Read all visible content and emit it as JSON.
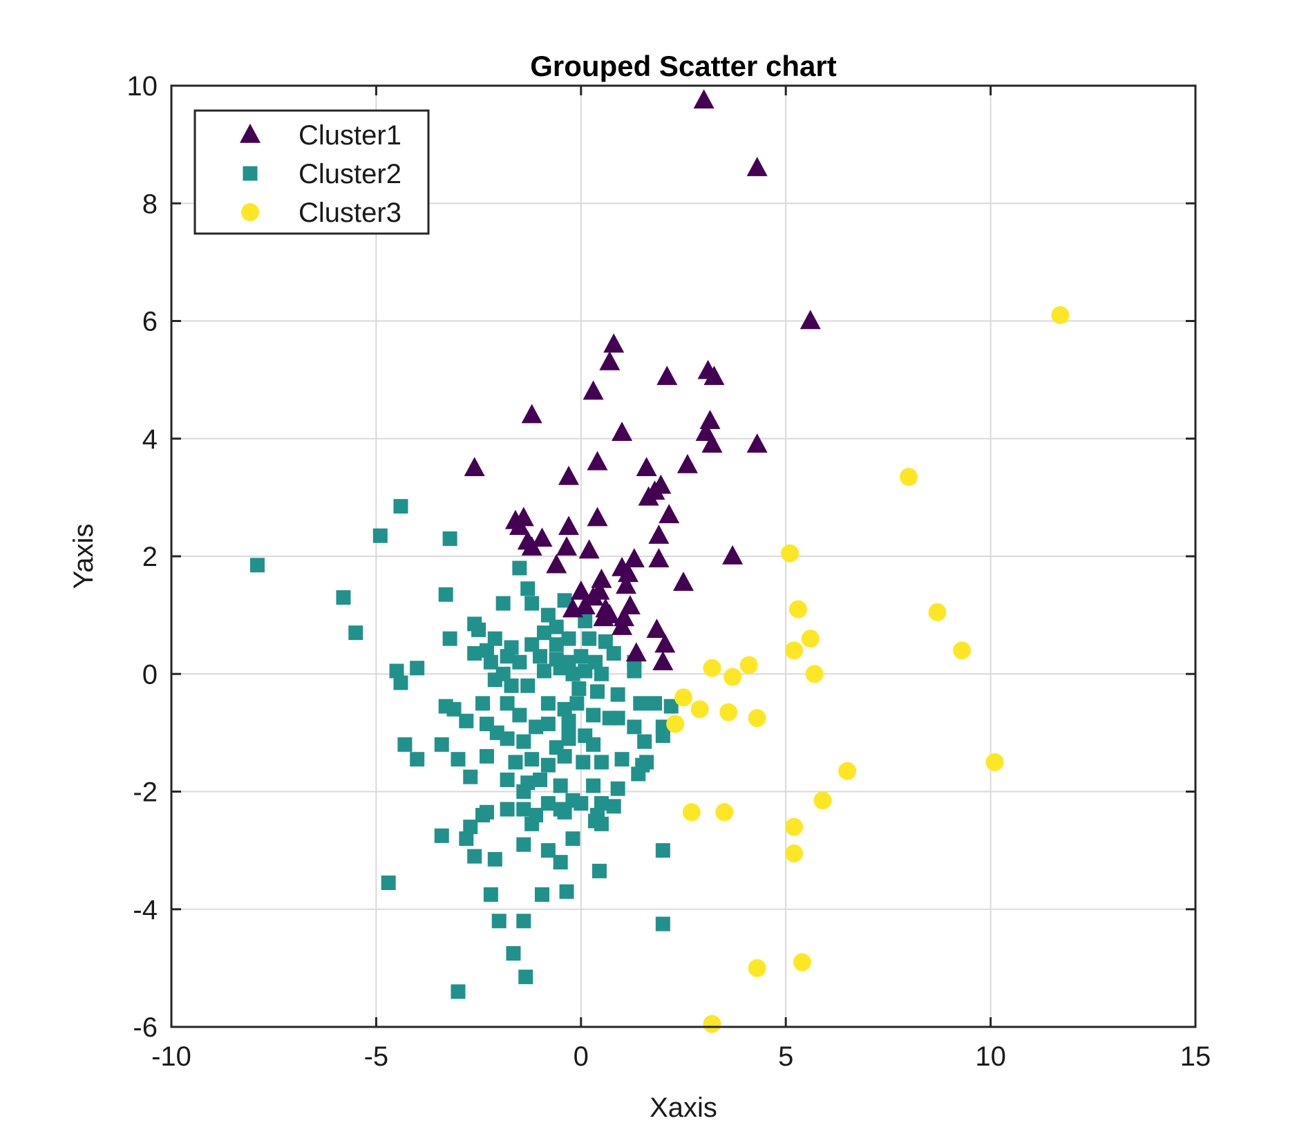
{
  "chart_data": {
    "type": "scatter",
    "title": "Grouped Scatter chart",
    "xlabel": "Xaxis",
    "ylabel": "Yaxis",
    "xlim": [
      -10,
      15
    ],
    "ylim": [
      -6,
      10
    ],
    "xticks": [
      -10,
      -5,
      0,
      5,
      10,
      15
    ],
    "yticks": [
      -6,
      -4,
      -2,
      0,
      2,
      4,
      6,
      8,
      10
    ],
    "xtick_labels": [
      "-10",
      "-5",
      "0",
      "5",
      "10",
      "15"
    ],
    "ytick_labels": [
      "-6",
      "-4",
      "-2",
      "0",
      "2",
      "4",
      "6",
      "8",
      "10"
    ],
    "grid": true,
    "legend_position": "top-left",
    "series": [
      {
        "name": "Cluster1",
        "marker": "triangle",
        "color": "#440154",
        "points": [
          [
            3.0,
            9.75
          ],
          [
            4.3,
            8.6
          ],
          [
            5.6,
            6.0
          ],
          [
            0.8,
            5.6
          ],
          [
            0.7,
            5.3
          ],
          [
            2.1,
            5.05
          ],
          [
            3.1,
            5.15
          ],
          [
            3.25,
            5.05
          ],
          [
            0.3,
            4.8
          ],
          [
            -1.2,
            4.4
          ],
          [
            3.15,
            4.3
          ],
          [
            3.05,
            4.1
          ],
          [
            1.0,
            4.1
          ],
          [
            3.2,
            3.9
          ],
          [
            4.3,
            3.9
          ],
          [
            0.4,
            3.6
          ],
          [
            -2.6,
            3.5
          ],
          [
            2.6,
            3.55
          ],
          [
            1.6,
            3.5
          ],
          [
            -0.3,
            3.35
          ],
          [
            1.95,
            3.2
          ],
          [
            1.8,
            3.1
          ],
          [
            1.65,
            3.0
          ],
          [
            2.15,
            2.7
          ],
          [
            0.4,
            2.65
          ],
          [
            -1.6,
            2.6
          ],
          [
            -1.4,
            2.65
          ],
          [
            -1.5,
            2.5
          ],
          [
            -0.3,
            2.5
          ],
          [
            -0.95,
            2.3
          ],
          [
            -1.3,
            2.25
          ],
          [
            -1.2,
            2.15
          ],
          [
            1.9,
            2.35
          ],
          [
            -0.35,
            2.15
          ],
          [
            0.2,
            2.1
          ],
          [
            3.7,
            2.0
          ],
          [
            -0.6,
            1.85
          ],
          [
            1.3,
            1.95
          ],
          [
            1.9,
            1.95
          ],
          [
            1.0,
            1.8
          ],
          [
            1.15,
            1.7
          ],
          [
            0.5,
            1.6
          ],
          [
            2.5,
            1.55
          ],
          [
            0.0,
            1.4
          ],
          [
            0.45,
            1.4
          ],
          [
            1.1,
            1.5
          ],
          [
            0.3,
            1.3
          ],
          [
            0.6,
            1.1
          ],
          [
            0.1,
            1.15
          ],
          [
            1.2,
            1.15
          ],
          [
            0.55,
            0.95
          ],
          [
            1.05,
            0.95
          ],
          [
            1.0,
            0.8
          ],
          [
            1.85,
            0.75
          ],
          [
            2.05,
            0.5
          ],
          [
            1.35,
            0.35
          ],
          [
            2.0,
            0.2
          ],
          [
            0.7,
            1.0
          ],
          [
            -0.2,
            1.1
          ]
        ]
      },
      {
        "name": "Cluster2",
        "marker": "square",
        "color": "#21918c",
        "points": [
          [
            -7.9,
            1.85
          ],
          [
            -4.4,
            2.85
          ],
          [
            -4.9,
            2.35
          ],
          [
            -3.2,
            2.3
          ],
          [
            -5.8,
            1.3
          ],
          [
            -5.5,
            0.7
          ],
          [
            -3.3,
            1.35
          ],
          [
            -1.5,
            1.8
          ],
          [
            -1.3,
            1.45
          ],
          [
            -1.9,
            1.2
          ],
          [
            -1.2,
            1.2
          ],
          [
            -0.4,
            1.25
          ],
          [
            -0.8,
            1.0
          ],
          [
            -0.6,
            0.8
          ],
          [
            -2.6,
            0.85
          ],
          [
            -2.5,
            0.75
          ],
          [
            -3.2,
            0.6
          ],
          [
            -2.1,
            0.6
          ],
          [
            -1.7,
            0.45
          ],
          [
            -2.3,
            0.4
          ],
          [
            -2.6,
            0.35
          ],
          [
            -1.2,
            0.5
          ],
          [
            -0.3,
            0.6
          ],
          [
            0.2,
            0.6
          ],
          [
            -4.0,
            0.1
          ],
          [
            -4.5,
            0.05
          ],
          [
            -4.4,
            -0.15
          ],
          [
            -2.2,
            0.2
          ],
          [
            -1.8,
            0.3
          ],
          [
            -1.5,
            0.2
          ],
          [
            -1.0,
            0.3
          ],
          [
            -0.6,
            0.25
          ],
          [
            -0.3,
            0.2
          ],
          [
            0.0,
            0.3
          ],
          [
            0.35,
            0.2
          ],
          [
            0.8,
            0.35
          ],
          [
            1.3,
            0.2
          ],
          [
            1.3,
            0.05
          ],
          [
            0.5,
            0.0
          ],
          [
            0.1,
            0.05
          ],
          [
            -0.2,
            0.0
          ],
          [
            -0.5,
            0.1
          ],
          [
            -0.9,
            0.05
          ],
          [
            -1.3,
            -0.2
          ],
          [
            -1.7,
            -0.2
          ],
          [
            -2.1,
            -0.1
          ],
          [
            -0.05,
            -0.25
          ],
          [
            0.4,
            -0.3
          ],
          [
            0.9,
            -0.35
          ],
          [
            1.45,
            -0.5
          ],
          [
            1.8,
            -0.5
          ],
          [
            2.2,
            -0.55
          ],
          [
            -0.4,
            -0.6
          ],
          [
            -0.8,
            -0.5
          ],
          [
            -1.8,
            -0.5
          ],
          [
            -2.4,
            -0.5
          ],
          [
            -3.3,
            -0.55
          ],
          [
            -3.1,
            -0.6
          ],
          [
            -0.1,
            -0.5
          ],
          [
            0.3,
            -0.7
          ],
          [
            0.7,
            -0.75
          ],
          [
            -0.8,
            -0.85
          ],
          [
            -2.3,
            -0.85
          ],
          [
            -2.8,
            -0.8
          ],
          [
            -0.3,
            -1.0
          ],
          [
            1.3,
            -0.9
          ],
          [
            0.9,
            -0.75
          ],
          [
            2.0,
            -0.9
          ],
          [
            -1.5,
            -0.7
          ],
          [
            -1.1,
            -0.9
          ],
          [
            -0.3,
            -1.1
          ],
          [
            0.1,
            -1.05
          ],
          [
            0.3,
            -1.2
          ],
          [
            1.55,
            -1.15
          ],
          [
            2.0,
            -1.05
          ],
          [
            -4.3,
            -1.2
          ],
          [
            -3.4,
            -1.2
          ],
          [
            -2.05,
            -1.0
          ],
          [
            -1.8,
            -1.1
          ],
          [
            -1.4,
            -1.15
          ],
          [
            -0.6,
            -1.25
          ],
          [
            -4.0,
            -1.45
          ],
          [
            -3.0,
            -1.45
          ],
          [
            -2.3,
            -1.4
          ],
          [
            -1.6,
            -1.5
          ],
          [
            -1.2,
            -1.45
          ],
          [
            -0.8,
            -1.55
          ],
          [
            -0.4,
            -1.4
          ],
          [
            0.05,
            -1.5
          ],
          [
            0.5,
            -1.5
          ],
          [
            1.0,
            -1.45
          ],
          [
            1.5,
            -1.55
          ],
          [
            1.6,
            -1.5
          ],
          [
            1.4,
            -1.7
          ],
          [
            -2.7,
            -1.75
          ],
          [
            -1.8,
            -1.8
          ],
          [
            -1.3,
            -1.85
          ],
          [
            -1.0,
            -1.8
          ],
          [
            -0.5,
            -1.9
          ],
          [
            0.3,
            -1.9
          ],
          [
            0.9,
            -1.95
          ],
          [
            -1.4,
            -2.0
          ],
          [
            -0.2,
            -2.15
          ],
          [
            0.5,
            -2.2
          ],
          [
            0.8,
            -2.25
          ],
          [
            -0.8,
            -2.2
          ],
          [
            -0.4,
            -2.35
          ],
          [
            0.0,
            -2.2
          ],
          [
            0.4,
            -2.4
          ],
          [
            -2.3,
            -2.35
          ],
          [
            -1.4,
            -2.3
          ],
          [
            -2.4,
            -2.4
          ],
          [
            -1.8,
            -2.3
          ],
          [
            -0.5,
            -2.3
          ],
          [
            -2.7,
            -2.6
          ],
          [
            -1.2,
            -2.55
          ],
          [
            0.35,
            -2.5
          ],
          [
            0.5,
            -2.55
          ],
          [
            -1.1,
            -2.4
          ],
          [
            -3.4,
            -2.75
          ],
          [
            -2.8,
            -2.8
          ],
          [
            -1.4,
            -2.9
          ],
          [
            -0.2,
            -2.8
          ],
          [
            -2.6,
            -3.1
          ],
          [
            -2.1,
            -3.15
          ],
          [
            -0.8,
            -3.0
          ],
          [
            -0.5,
            -3.2
          ],
          [
            0.45,
            -3.35
          ],
          [
            2.0,
            -3.0
          ],
          [
            -4.7,
            -3.55
          ],
          [
            -2.2,
            -3.75
          ],
          [
            -0.95,
            -3.75
          ],
          [
            -0.35,
            -3.7
          ],
          [
            -2.0,
            -4.2
          ],
          [
            -1.4,
            -4.2
          ],
          [
            2.0,
            -4.25
          ],
          [
            -1.65,
            -4.75
          ],
          [
            -1.35,
            -5.15
          ],
          [
            -3.0,
            -5.4
          ],
          [
            -0.6,
            0.5
          ],
          [
            0.1,
            0.9
          ],
          [
            0.6,
            0.55
          ],
          [
            -0.9,
            0.7
          ],
          [
            -1.9,
            0.0
          ],
          [
            -0.3,
            -0.8
          ]
        ]
      },
      {
        "name": "Cluster3",
        "marker": "circle",
        "color": "#fde725",
        "points": [
          [
            11.7,
            6.1
          ],
          [
            8.0,
            3.35
          ],
          [
            5.1,
            2.05
          ],
          [
            5.3,
            1.1
          ],
          [
            8.7,
            1.05
          ],
          [
            5.6,
            0.6
          ],
          [
            5.2,
            0.4
          ],
          [
            9.3,
            0.4
          ],
          [
            4.1,
            0.15
          ],
          [
            3.2,
            0.1
          ],
          [
            3.7,
            -0.05
          ],
          [
            5.7,
            0.0
          ],
          [
            2.5,
            -0.4
          ],
          [
            2.9,
            -0.6
          ],
          [
            3.6,
            -0.65
          ],
          [
            2.3,
            -0.85
          ],
          [
            4.3,
            -0.75
          ],
          [
            10.1,
            -1.5
          ],
          [
            6.5,
            -1.65
          ],
          [
            5.9,
            -2.15
          ],
          [
            2.7,
            -2.35
          ],
          [
            3.5,
            -2.35
          ],
          [
            5.2,
            -2.6
          ],
          [
            5.2,
            -3.05
          ],
          [
            5.4,
            -4.9
          ],
          [
            4.3,
            -5.0
          ],
          [
            3.2,
            -5.95
          ]
        ]
      }
    ]
  }
}
